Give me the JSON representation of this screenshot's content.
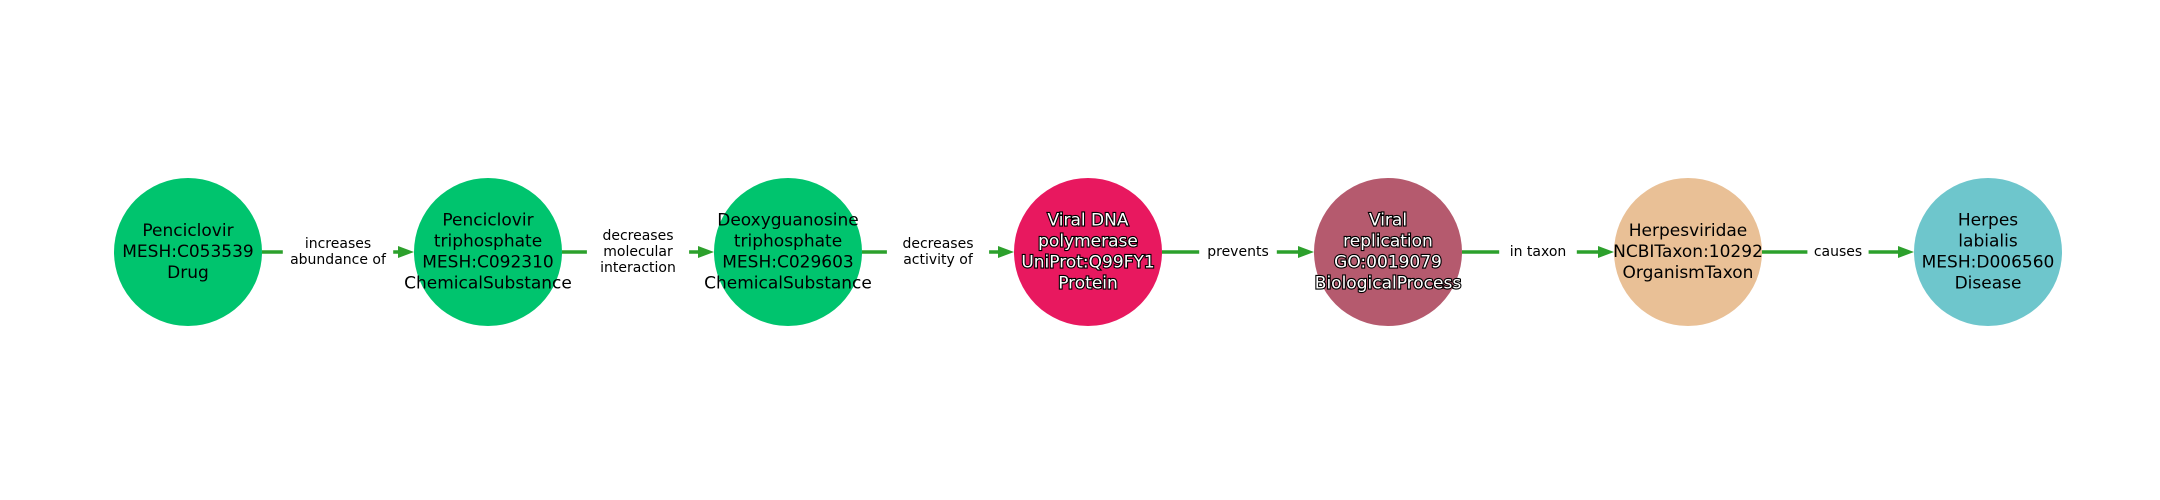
{
  "diagram": {
    "nodes": [
      {
        "id": "penciclovir",
        "lines": [
          "Penciclovir",
          "MESH:C053539",
          "Drug"
        ],
        "color": "#00c46e",
        "text_style": "dark"
      },
      {
        "id": "penciclovir-triphosphate",
        "lines": [
          "Penciclovir",
          "triphosphate",
          "MESH:C092310",
          "ChemicalSubstance"
        ],
        "color": "#00c46e",
        "text_style": "dark"
      },
      {
        "id": "deoxyguanosine-triphosphate",
        "lines": [
          "Deoxyguanosine",
          "triphosphate",
          "MESH:C029603",
          "ChemicalSubstance"
        ],
        "color": "#00c46e",
        "text_style": "dark"
      },
      {
        "id": "viral-dna-polymerase",
        "lines": [
          "Viral DNA",
          "polymerase",
          "UniProt:Q99FY1",
          "Protein"
        ],
        "color": "#e8185f",
        "text_style": "light"
      },
      {
        "id": "viral-replication",
        "lines": [
          "Viral",
          "replication",
          "GO:0019079",
          "BiologicalProcess"
        ],
        "color": "#b55a6e",
        "text_style": "light"
      },
      {
        "id": "herpesviridae",
        "lines": [
          "Herpesviridae",
          "NCBITaxon:10292",
          "OrganismTaxon"
        ],
        "color": "#e9c096",
        "text_style": "dark"
      },
      {
        "id": "herpes-labialis",
        "lines": [
          "Herpes",
          "labialis",
          "MESH:D006560",
          "Disease"
        ],
        "color": "#6ec6cc",
        "text_style": "dark"
      }
    ],
    "edges": [
      {
        "from": 0,
        "to": 1,
        "lines": [
          "increases",
          "abundance of"
        ]
      },
      {
        "from": 1,
        "to": 2,
        "lines": [
          "decreases",
          "molecular",
          "interaction"
        ]
      },
      {
        "from": 2,
        "to": 3,
        "lines": [
          "decreases",
          "activity of"
        ]
      },
      {
        "from": 3,
        "to": 4,
        "lines": [
          "prevents"
        ]
      },
      {
        "from": 4,
        "to": 5,
        "lines": [
          "in taxon"
        ]
      },
      {
        "from": 5,
        "to": 6,
        "lines": [
          "causes"
        ]
      }
    ],
    "edge_color": "#2ca02c"
  }
}
